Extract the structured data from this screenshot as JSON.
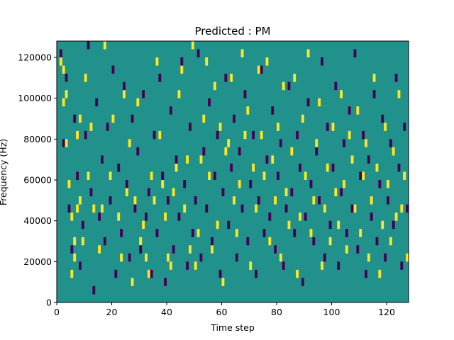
{
  "chart_data": {
    "type": "heatmap",
    "title": "Predicted : PM",
    "xlabel": "Time step",
    "ylabel": "Frequency (Hz)",
    "xlim": [
      0,
      128
    ],
    "ylim": [
      0,
      128000
    ],
    "xticks": [
      0,
      20,
      40,
      60,
      80,
      100,
      120
    ],
    "yticks": [
      0,
      20000,
      40000,
      60000,
      80000,
      100000,
      120000
    ],
    "xtick_labels": [
      "0",
      "20",
      "40",
      "60",
      "80",
      "100",
      "120"
    ],
    "ytick_labels": [
      "0",
      "20000",
      "40000",
      "60000",
      "80000",
      "100000",
      "120000"
    ],
    "grid": false,
    "colormap": "viridis",
    "colors": {
      "background": "#21918c",
      "low": "#440154",
      "high": "#fde725"
    },
    "value_levels": {
      "low": -1,
      "background": 0,
      "high": 1
    },
    "bin_width_hz": 4000,
    "cells_high": [
      [
        1,
        29
      ],
      [
        2,
        28
      ],
      [
        2,
        24
      ],
      [
        3,
        25
      ],
      [
        3,
        19
      ],
      [
        4,
        14
      ],
      [
        5,
        10
      ],
      [
        5,
        3
      ],
      [
        6,
        5
      ],
      [
        6,
        7
      ],
      [
        7,
        11
      ],
      [
        7,
        20
      ],
      [
        8,
        12
      ],
      [
        8,
        22
      ],
      [
        9,
        7
      ],
      [
        10,
        27
      ],
      [
        11,
        15
      ],
      [
        12,
        21
      ],
      [
        13,
        11
      ],
      [
        15,
        6
      ],
      [
        16,
        11
      ],
      [
        17,
        31
      ],
      [
        19,
        15
      ],
      [
        20,
        22
      ],
      [
        22,
        10
      ],
      [
        23,
        5
      ],
      [
        24,
        25
      ],
      [
        25,
        13
      ],
      [
        26,
        19
      ],
      [
        27,
        2
      ],
      [
        28,
        12
      ],
      [
        29,
        24
      ],
      [
        30,
        7
      ],
      [
        31,
        9
      ],
      [
        32,
        5
      ],
      [
        33,
        3
      ],
      [
        34,
        15
      ],
      [
        35,
        12
      ],
      [
        36,
        29
      ],
      [
        37,
        20
      ],
      [
        38,
        14
      ],
      [
        39,
        10
      ],
      [
        40,
        5
      ],
      [
        41,
        4
      ],
      [
        42,
        13
      ],
      [
        43,
        16
      ],
      [
        44,
        25
      ],
      [
        45,
        28
      ],
      [
        46,
        11
      ],
      [
        47,
        17
      ],
      [
        48,
        6
      ],
      [
        49,
        31
      ],
      [
        50,
        4
      ],
      [
        51,
        8
      ],
      [
        52,
        17
      ],
      [
        53,
        22
      ],
      [
        54,
        29
      ],
      [
        55,
        15
      ],
      [
        56,
        6
      ],
      [
        57,
        26
      ],
      [
        58,
        9
      ],
      [
        59,
        21
      ],
      [
        60,
        2
      ],
      [
        61,
        18
      ],
      [
        62,
        19
      ],
      [
        63,
        27
      ],
      [
        64,
        12
      ],
      [
        65,
        8
      ],
      [
        66,
        14
      ],
      [
        67,
        30
      ],
      [
        68,
        20
      ],
      [
        69,
        23
      ],
      [
        70,
        4
      ],
      [
        71,
        16
      ],
      [
        72,
        11
      ],
      [
        73,
        28
      ],
      [
        74,
        20
      ],
      [
        75,
        15
      ],
      [
        76,
        29
      ],
      [
        77,
        7
      ],
      [
        78,
        17
      ],
      [
        79,
        12
      ],
      [
        80,
        21
      ],
      [
        81,
        5
      ],
      [
        82,
        26
      ],
      [
        83,
        13
      ],
      [
        84,
        9
      ],
      [
        85,
        18
      ],
      [
        86,
        27
      ],
      [
        87,
        3
      ],
      [
        88,
        10
      ],
      [
        89,
        22
      ],
      [
        90,
        15
      ],
      [
        91,
        30
      ],
      [
        92,
        8
      ],
      [
        93,
        12
      ],
      [
        94,
        19
      ],
      [
        95,
        24
      ],
      [
        96,
        4
      ],
      [
        97,
        11
      ],
      [
        98,
        16
      ],
      [
        99,
        7
      ],
      [
        100,
        21
      ],
      [
        101,
        13
      ],
      [
        102,
        9
      ],
      [
        103,
        25
      ],
      [
        104,
        14
      ],
      [
        105,
        6
      ],
      [
        106,
        20
      ],
      [
        107,
        17
      ],
      [
        108,
        11
      ],
      [
        109,
        23
      ],
      [
        110,
        8
      ],
      [
        111,
        15
      ],
      [
        112,
        19
      ],
      [
        113,
        5
      ],
      [
        114,
        12
      ],
      [
        115,
        27
      ],
      [
        116,
        16
      ],
      [
        117,
        3
      ],
      [
        118,
        9
      ],
      [
        119,
        21
      ],
      [
        120,
        14
      ],
      [
        121,
        7
      ],
      [
        122,
        18
      ],
      [
        123,
        10
      ],
      [
        124,
        25
      ],
      [
        125,
        11
      ],
      [
        126,
        15
      ],
      [
        127,
        5
      ]
    ],
    "cells_low": [
      [
        1,
        30
      ],
      [
        2,
        19
      ],
      [
        3,
        27
      ],
      [
        4,
        11
      ],
      [
        5,
        6
      ],
      [
        6,
        22
      ],
      [
        7,
        15
      ],
      [
        8,
        4
      ],
      [
        9,
        9
      ],
      [
        10,
        20
      ],
      [
        11,
        31
      ],
      [
        12,
        13
      ],
      [
        13,
        1
      ],
      [
        14,
        24
      ],
      [
        15,
        10
      ],
      [
        16,
        17
      ],
      [
        17,
        7
      ],
      [
        18,
        21
      ],
      [
        19,
        12
      ],
      [
        20,
        28
      ],
      [
        21,
        3
      ],
      [
        22,
        16
      ],
      [
        23,
        8
      ],
      [
        24,
        26
      ],
      [
        25,
        14
      ],
      [
        26,
        5
      ],
      [
        27,
        22
      ],
      [
        28,
        11
      ],
      [
        29,
        18
      ],
      [
        30,
        6
      ],
      [
        31,
        25
      ],
      [
        32,
        10
      ],
      [
        33,
        13
      ],
      [
        34,
        3
      ],
      [
        35,
        20
      ],
      [
        36,
        8
      ],
      [
        37,
        27
      ],
      [
        38,
        15
      ],
      [
        39,
        2
      ],
      [
        40,
        12
      ],
      [
        41,
        23
      ],
      [
        42,
        6
      ],
      [
        43,
        17
      ],
      [
        44,
        10
      ],
      [
        45,
        29
      ],
      [
        46,
        14
      ],
      [
        47,
        4
      ],
      [
        48,
        21
      ],
      [
        49,
        8
      ],
      [
        50,
        12
      ],
      [
        51,
        30
      ],
      [
        52,
        5
      ],
      [
        53,
        18
      ],
      [
        54,
        11
      ],
      [
        55,
        24
      ],
      [
        56,
        7
      ],
      [
        57,
        15
      ],
      [
        58,
        20
      ],
      [
        59,
        3
      ],
      [
        60,
        13
      ],
      [
        61,
        27
      ],
      [
        62,
        9
      ],
      [
        63,
        16
      ],
      [
        64,
        22
      ],
      [
        65,
        5
      ],
      [
        66,
        18
      ],
      [
        67,
        11
      ],
      [
        68,
        25
      ],
      [
        69,
        7
      ],
      [
        70,
        14
      ],
      [
        71,
        20
      ],
      [
        72,
        3
      ],
      [
        73,
        12
      ],
      [
        74,
        28
      ],
      [
        75,
        8
      ],
      [
        76,
        17
      ],
      [
        77,
        10
      ],
      [
        78,
        23
      ],
      [
        79,
        6
      ],
      [
        80,
        15
      ],
      [
        81,
        19
      ],
      [
        82,
        4
      ],
      [
        83,
        11
      ],
      [
        84,
        26
      ],
      [
        85,
        13
      ],
      [
        86,
        8
      ],
      [
        87,
        20
      ],
      [
        88,
        16
      ],
      [
        89,
        2
      ],
      [
        90,
        10
      ],
      [
        91,
        24
      ],
      [
        92,
        14
      ],
      [
        93,
        7
      ],
      [
        94,
        18
      ],
      [
        95,
        12
      ],
      [
        96,
        29
      ],
      [
        97,
        5
      ],
      [
        98,
        21
      ],
      [
        99,
        9
      ],
      [
        100,
        16
      ],
      [
        101,
        26
      ],
      [
        102,
        4
      ],
      [
        103,
        13
      ],
      [
        104,
        19
      ],
      [
        105,
        8
      ],
      [
        106,
        23
      ],
      [
        107,
        11
      ],
      [
        108,
        30
      ],
      [
        109,
        6
      ],
      [
        110,
        15
      ],
      [
        111,
        20
      ],
      [
        112,
        3
      ],
      [
        113,
        17
      ],
      [
        114,
        10
      ],
      [
        115,
        25
      ],
      [
        116,
        7
      ],
      [
        117,
        14
      ],
      [
        118,
        22
      ],
      [
        119,
        5
      ],
      [
        120,
        12
      ],
      [
        121,
        19
      ],
      [
        122,
        9
      ],
      [
        123,
        27
      ],
      [
        124,
        16
      ],
      [
        125,
        4
      ],
      [
        126,
        21
      ],
      [
        127,
        11
      ]
    ]
  }
}
